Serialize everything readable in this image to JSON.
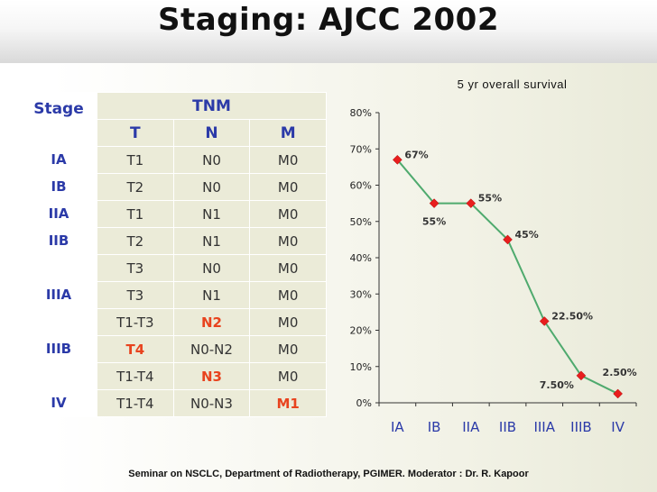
{
  "slide": {
    "title": "Staging: AJCC 2002",
    "footer": "Seminar on NSCLC, Department of Radiotherapy, PGIMER. Moderator : Dr. R. Kapoor"
  },
  "table": {
    "stage_header": "Stage",
    "tnm_header": "TNM",
    "sub_headers": [
      "T",
      "N",
      "M"
    ],
    "rows": [
      {
        "stage": "IA",
        "t": "T1",
        "n": "N0",
        "m": "M0"
      },
      {
        "stage": "IB",
        "t": "T2",
        "n": "N0",
        "m": "M0"
      },
      {
        "stage": "IIA",
        "t": "T1",
        "n": "N1",
        "m": "M0"
      },
      {
        "stage": "IIB",
        "t": "T2",
        "n": "N1",
        "m": "M0"
      },
      {
        "stage": "",
        "t": "T3",
        "n": "N0",
        "m": "M0"
      },
      {
        "stage": "IIIA",
        "t": "T3",
        "n": "N1",
        "m": "M0"
      },
      {
        "stage": "",
        "t": "T1-T3",
        "n": "N2",
        "m": "M0"
      },
      {
        "stage": "IIIB",
        "t": "T4",
        "n": "N0-N2",
        "m": "M0"
      },
      {
        "stage": "",
        "t": "T1-T4",
        "n": "N3",
        "m": "M0"
      },
      {
        "stage": "IV",
        "t": "T1-T4",
        "n": "N0-N3",
        "m": "M1"
      }
    ],
    "highlight_color": "#e8431e",
    "stage_color": "#2b3aa8"
  },
  "chart_data": {
    "type": "line",
    "title": "5 yr overall survival",
    "categories": [
      "IA",
      "IB",
      "IIA",
      "IIB",
      "IIIA",
      "IIIB",
      "IV"
    ],
    "values": [
      67,
      55,
      55,
      45,
      22.5,
      7.5,
      2.5
    ],
    "data_labels": [
      "67%",
      "55%",
      "55%",
      "45%",
      "22.50%",
      "7.50%",
      "2.50%"
    ],
    "y_ticks": [
      "0%",
      "10%",
      "20%",
      "30%",
      "40%",
      "50%",
      "60%",
      "70%",
      "80%"
    ],
    "ylim": [
      0,
      80
    ],
    "xlabel": "",
    "ylabel": "",
    "grid": false,
    "line_color": "#4faa6e",
    "marker_color": "#e81e1e"
  }
}
